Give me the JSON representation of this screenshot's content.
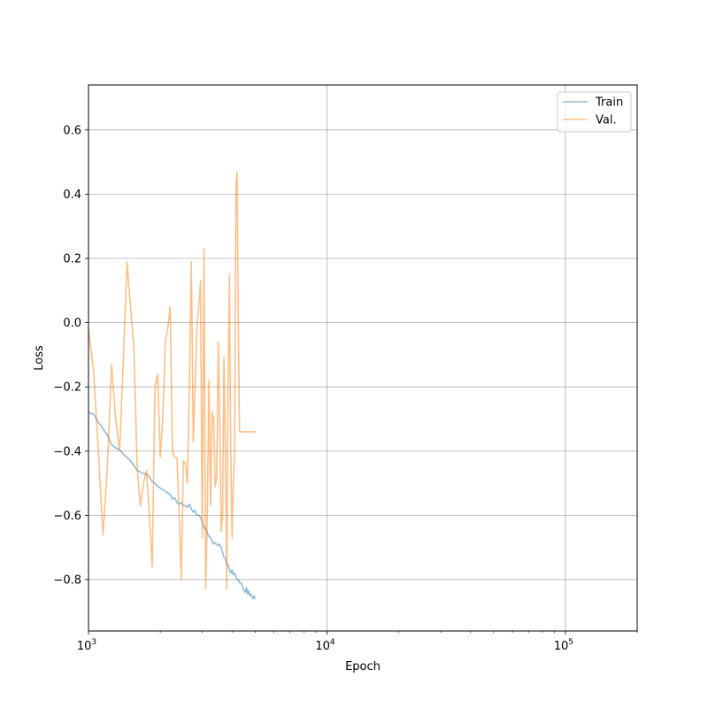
{
  "chart_data": {
    "type": "line",
    "xscale": "log",
    "xlabel": "Epoch",
    "ylabel": "Loss",
    "xlim": [
      1000,
      200000
    ],
    "ylim": [
      -0.96,
      0.74
    ],
    "grid": true,
    "legend_position": "top-right",
    "x_ticks": [
      {
        "value": 1000,
        "base": "10",
        "exp": "3"
      },
      {
        "value": 10000,
        "base": "10",
        "exp": "4"
      },
      {
        "value": 100000,
        "base": "10",
        "exp": "5"
      }
    ],
    "y_ticks": [
      {
        "value": 0.6,
        "label": "0.6"
      },
      {
        "value": 0.4,
        "label": "0.4"
      },
      {
        "value": 0.2,
        "label": "0.2"
      },
      {
        "value": 0.0,
        "label": "0.0"
      },
      {
        "value": -0.2,
        "label": "−0.2"
      },
      {
        "value": -0.4,
        "label": "−0.4"
      },
      {
        "value": -0.6,
        "label": "−0.6"
      },
      {
        "value": -0.8,
        "label": "−0.8"
      }
    ],
    "series": [
      {
        "name": "Train",
        "color": "#1f77b4",
        "x": [
          1000,
          1050,
          1100,
          1150,
          1200,
          1250,
          1300,
          1350,
          1400,
          1450,
          1500,
          1550,
          1600,
          1650,
          1700,
          1750,
          1800,
          1850,
          1900,
          1950,
          2000,
          2050,
          2100,
          2150,
          2200,
          2250,
          2300,
          2350,
          2400,
          2450,
          2500,
          2550,
          2600,
          2650,
          2700,
          2750,
          2800,
          2850,
          2900,
          2950,
          3000,
          3050,
          3100,
          3150,
          3200,
          3250,
          3300,
          3350,
          3400,
          3450,
          3500,
          3550,
          3600,
          3650,
          3700,
          3750,
          3800,
          3850,
          3900,
          3950,
          4000,
          4050,
          4100,
          4150,
          4200,
          4250,
          4300,
          4350,
          4400,
          4450,
          4500,
          4550,
          4600,
          4650,
          4700,
          4750,
          4800,
          4850,
          4900,
          4950,
          5000
        ],
        "y": [
          -0.28,
          -0.285,
          -0.31,
          -0.33,
          -0.35,
          -0.38,
          -0.39,
          -0.395,
          -0.41,
          -0.42,
          -0.43,
          -0.445,
          -0.46,
          -0.465,
          -0.47,
          -0.47,
          -0.48,
          -0.495,
          -0.5,
          -0.51,
          -0.515,
          -0.52,
          -0.525,
          -0.53,
          -0.535,
          -0.55,
          -0.545,
          -0.56,
          -0.565,
          -0.56,
          -0.57,
          -0.57,
          -0.575,
          -0.565,
          -0.58,
          -0.59,
          -0.585,
          -0.6,
          -0.6,
          -0.605,
          -0.62,
          -0.64,
          -0.64,
          -0.655,
          -0.665,
          -0.67,
          -0.68,
          -0.69,
          -0.685,
          -0.69,
          -0.695,
          -0.69,
          -0.7,
          -0.715,
          -0.73,
          -0.735,
          -0.75,
          -0.755,
          -0.77,
          -0.78,
          -0.77,
          -0.785,
          -0.78,
          -0.79,
          -0.8,
          -0.8,
          -0.81,
          -0.81,
          -0.815,
          -0.83,
          -0.835,
          -0.84,
          -0.825,
          -0.845,
          -0.835,
          -0.85,
          -0.845,
          -0.855,
          -0.86,
          -0.85,
          -0.86
        ]
      },
      {
        "name": "Val.",
        "color": "#ff7f0e",
        "x": [
          1000,
          1050,
          1100,
          1150,
          1200,
          1250,
          1300,
          1350,
          1400,
          1450,
          1500,
          1550,
          1600,
          1650,
          1700,
          1750,
          1800,
          1850,
          1900,
          1950,
          2000,
          2050,
          2100,
          2150,
          2200,
          2250,
          2300,
          2350,
          2400,
          2450,
          2500,
          2550,
          2600,
          2650,
          2700,
          2750,
          2800,
          2850,
          2900,
          2950,
          3000,
          3050,
          3100,
          3150,
          3200,
          3250,
          3300,
          3350,
          3400,
          3450,
          3500,
          3550,
          3600,
          3650,
          3700,
          3750,
          3800,
          3850,
          3900,
          3950,
          4000,
          4050,
          4100,
          4150,
          4200,
          4250,
          4300,
          4350,
          4400,
          4450,
          4500,
          4550,
          4600,
          4650,
          4700,
          4750,
          4800,
          4850,
          4900,
          4950,
          5000
        ],
        "y": [
          -0.02,
          -0.15,
          -0.4,
          -0.66,
          -0.45,
          -0.13,
          -0.3,
          -0.4,
          -0.12,
          0.19,
          0.05,
          -0.08,
          -0.45,
          -0.57,
          -0.5,
          -0.46,
          -0.6,
          -0.76,
          -0.2,
          -0.16,
          -0.42,
          -0.3,
          -0.06,
          -0.02,
          0.05,
          -0.4,
          -0.42,
          -0.42,
          -0.6,
          -0.8,
          -0.43,
          -0.44,
          -0.5,
          -0.18,
          0.19,
          -0.37,
          -0.2,
          -0.01,
          0.05,
          0.13,
          -0.67,
          0.23,
          -0.83,
          -0.59,
          -0.18,
          -0.57,
          -0.28,
          -0.3,
          -0.51,
          -0.48,
          -0.06,
          -0.3,
          -0.65,
          -0.6,
          -0.11,
          -0.4,
          -0.83,
          -0.2,
          0.15,
          -0.4,
          -0.67,
          -0.5,
          -0.4,
          0.42,
          0.47,
          0.0,
          -0.34,
          -0.34,
          -0.34,
          -0.34,
          -0.34,
          -0.34,
          -0.34,
          -0.34,
          -0.34,
          -0.34,
          -0.34,
          -0.34,
          -0.34,
          -0.34,
          -0.34
        ]
      }
    ]
  }
}
